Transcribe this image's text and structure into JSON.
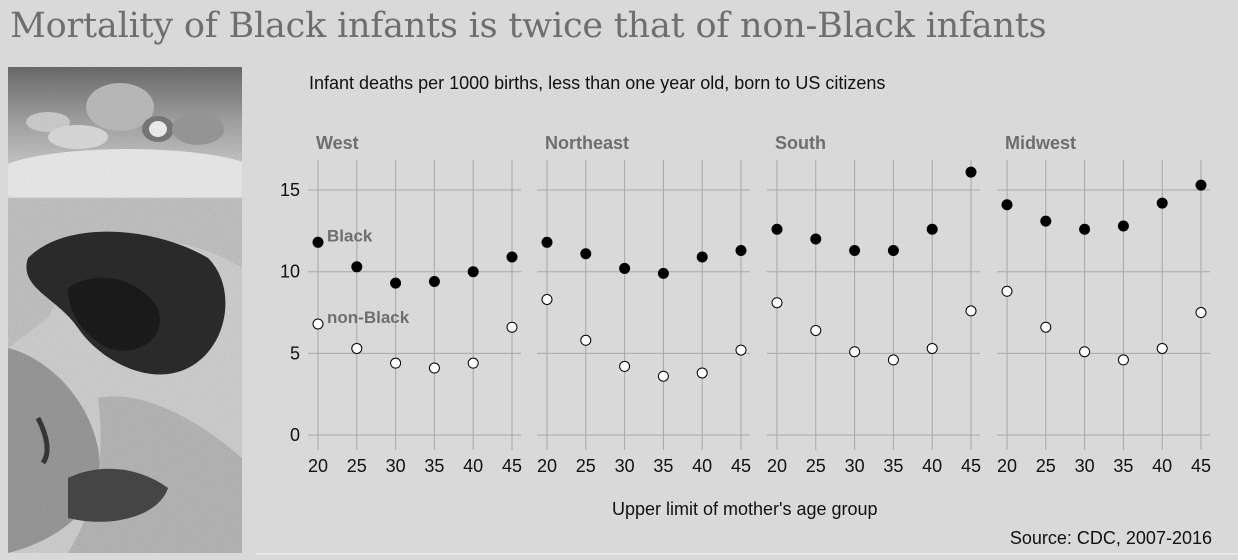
{
  "title": "Mortality of Black infants is twice that of non-Black infants",
  "photos": {
    "top": "photo-infant-feet",
    "bottom": "photo-grieving-woman"
  },
  "source": "Source: CDC, 2007-2016",
  "colors": {
    "background": "#d9d9d9",
    "grid": "#a8a8a8",
    "black_series": "#000000",
    "nonblack_series": "#ffffff",
    "panel_title": "#6e6e6e",
    "title": "#6e6e6e"
  },
  "chart_data": {
    "type": "scatter",
    "title": "Infant deaths per 1000 births, less than one year old, born to US citizens",
    "xlabel": "Upper limit of mother's age group",
    "ylabel": "",
    "ylim": [
      0,
      16
    ],
    "yticks": [
      0,
      5,
      10,
      15
    ],
    "x": [
      20,
      25,
      30,
      35,
      40,
      45
    ],
    "grid": true,
    "legend": "inline labels in first panel",
    "panels": [
      {
        "name": "West",
        "series": [
          {
            "name": "Black",
            "values": [
              11.8,
              10.3,
              9.3,
              9.4,
              10.0,
              10.9
            ]
          },
          {
            "name": "non-Black",
            "values": [
              6.8,
              5.3,
              4.4,
              4.1,
              4.4,
              6.6
            ]
          }
        ]
      },
      {
        "name": "Northeast",
        "series": [
          {
            "name": "Black",
            "values": [
              11.8,
              11.1,
              10.2,
              9.9,
              10.9,
              11.3
            ]
          },
          {
            "name": "non-Black",
            "values": [
              8.3,
              5.8,
              4.2,
              3.6,
              3.8,
              5.2
            ]
          }
        ]
      },
      {
        "name": "South",
        "series": [
          {
            "name": "Black",
            "values": [
              12.6,
              12.0,
              11.3,
              11.3,
              12.6,
              16.1
            ]
          },
          {
            "name": "non-Black",
            "values": [
              8.1,
              6.4,
              5.1,
              4.6,
              5.3,
              7.6
            ]
          }
        ]
      },
      {
        "name": "Midwest",
        "series": [
          {
            "name": "Black",
            "values": [
              14.1,
              13.1,
              12.6,
              12.8,
              14.2,
              15.3
            ]
          },
          {
            "name": "non-Black",
            "values": [
              8.8,
              6.6,
              5.1,
              4.6,
              5.3,
              7.5
            ]
          }
        ]
      }
    ]
  }
}
